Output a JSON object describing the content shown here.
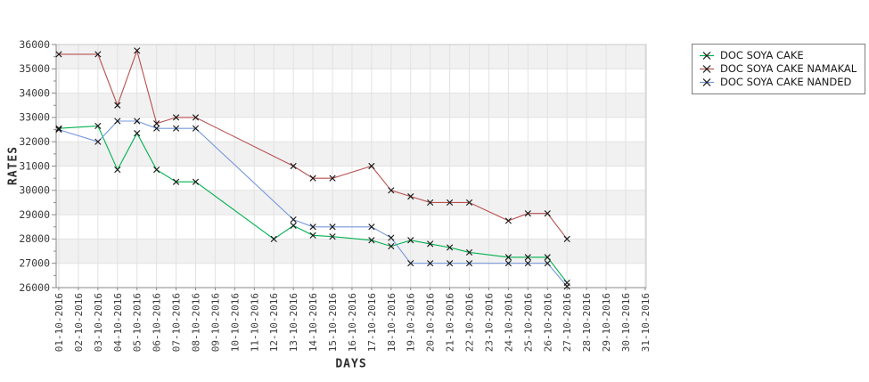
{
  "chart_data": {
    "type": "line",
    "title": "",
    "xlabel": "DAYS",
    "ylabel": "RATES",
    "ylim": [
      26000,
      36000
    ],
    "y_tick_step": 1000,
    "y_minor_tick_step": 500,
    "grid": true,
    "legend_position": "outside-top-right",
    "marker": "x",
    "categories": [
      "01-10-2016",
      "02-10-2016",
      "03-10-2016",
      "04-10-2016",
      "05-10-2016",
      "06-10-2016",
      "07-10-2016",
      "08-10-2016",
      "09-10-2016",
      "10-10-2016",
      "11-10-2016",
      "12-10-2016",
      "13-10-2016",
      "14-10-2016",
      "15-10-2016",
      "16-10-2016",
      "17-10-2016",
      "18-10-2016",
      "19-10-2016",
      "20-10-2016",
      "21-10-2016",
      "22-10-2016",
      "23-10-2016",
      "24-10-2016",
      "25-10-2016",
      "26-10-2016",
      "27-10-2016",
      "28-10-2016",
      "29-10-2016",
      "30-10-2016",
      "31-10-2016"
    ],
    "series": [
      {
        "name": "DOC SOYA CAKE",
        "color": "#00b050",
        "points": [
          [
            "01-10-2016",
            32550
          ],
          [
            "03-10-2016",
            32650
          ],
          [
            "04-10-2016",
            30850
          ],
          [
            "05-10-2016",
            32350
          ],
          [
            "06-10-2016",
            30850
          ],
          [
            "07-10-2016",
            30350
          ],
          [
            "08-10-2016",
            30350
          ],
          [
            "12-10-2016",
            28000
          ],
          [
            "13-10-2016",
            28550
          ],
          [
            "14-10-2016",
            28150
          ],
          [
            "15-10-2016",
            28100
          ],
          [
            "17-10-2016",
            27950
          ],
          [
            "18-10-2016",
            27700
          ],
          [
            "19-10-2016",
            27950
          ],
          [
            "20-10-2016",
            27800
          ],
          [
            "21-10-2016",
            27650
          ],
          [
            "22-10-2016",
            27450
          ],
          [
            "24-10-2016",
            27250
          ],
          [
            "25-10-2016",
            27250
          ],
          [
            "26-10-2016",
            27250
          ],
          [
            "27-10-2016",
            26200
          ]
        ]
      },
      {
        "name": "DOC SOYA CAKE NAMAKAL",
        "color": "#b84f4f",
        "points": [
          [
            "01-10-2016",
            35600
          ],
          [
            "03-10-2016",
            35600
          ],
          [
            "04-10-2016",
            33500
          ],
          [
            "05-10-2016",
            35750
          ],
          [
            "06-10-2016",
            32750
          ],
          [
            "07-10-2016",
            33000
          ],
          [
            "08-10-2016",
            33000
          ],
          [
            "13-10-2016",
            31000
          ],
          [
            "14-10-2016",
            30500
          ],
          [
            "15-10-2016",
            30500
          ],
          [
            "17-10-2016",
            31000
          ],
          [
            "18-10-2016",
            30000
          ],
          [
            "19-10-2016",
            29750
          ],
          [
            "20-10-2016",
            29500
          ],
          [
            "21-10-2016",
            29500
          ],
          [
            "22-10-2016",
            29500
          ],
          [
            "24-10-2016",
            28750
          ],
          [
            "25-10-2016",
            29050
          ],
          [
            "26-10-2016",
            29050
          ],
          [
            "27-10-2016",
            28000
          ]
        ]
      },
      {
        "name": "DOC SOYA CAKE NANDED",
        "color": "#7598db",
        "points": [
          [
            "01-10-2016",
            32500
          ],
          [
            "03-10-2016",
            32000
          ],
          [
            "04-10-2016",
            32850
          ],
          [
            "05-10-2016",
            32850
          ],
          [
            "06-10-2016",
            32550
          ],
          [
            "07-10-2016",
            32550
          ],
          [
            "08-10-2016",
            32550
          ],
          [
            "13-10-2016",
            28800
          ],
          [
            "14-10-2016",
            28500
          ],
          [
            "15-10-2016",
            28500
          ],
          [
            "17-10-2016",
            28500
          ],
          [
            "18-10-2016",
            28050
          ],
          [
            "19-10-2016",
            27000
          ],
          [
            "20-10-2016",
            27000
          ],
          [
            "21-10-2016",
            27000
          ],
          [
            "22-10-2016",
            27000
          ],
          [
            "24-10-2016",
            27000
          ],
          [
            "25-10-2016",
            27000
          ],
          [
            "26-10-2016",
            27000
          ],
          [
            "27-10-2016",
            26050
          ]
        ]
      }
    ],
    "layout": {
      "band_color": "#f1f1f1",
      "grid_color": "#e2e2e2",
      "border_color": "#c9c9c9",
      "axis_color": "#8a8a8a",
      "marker_color": "#141414",
      "text_color": "#3a3a3a"
    }
  }
}
